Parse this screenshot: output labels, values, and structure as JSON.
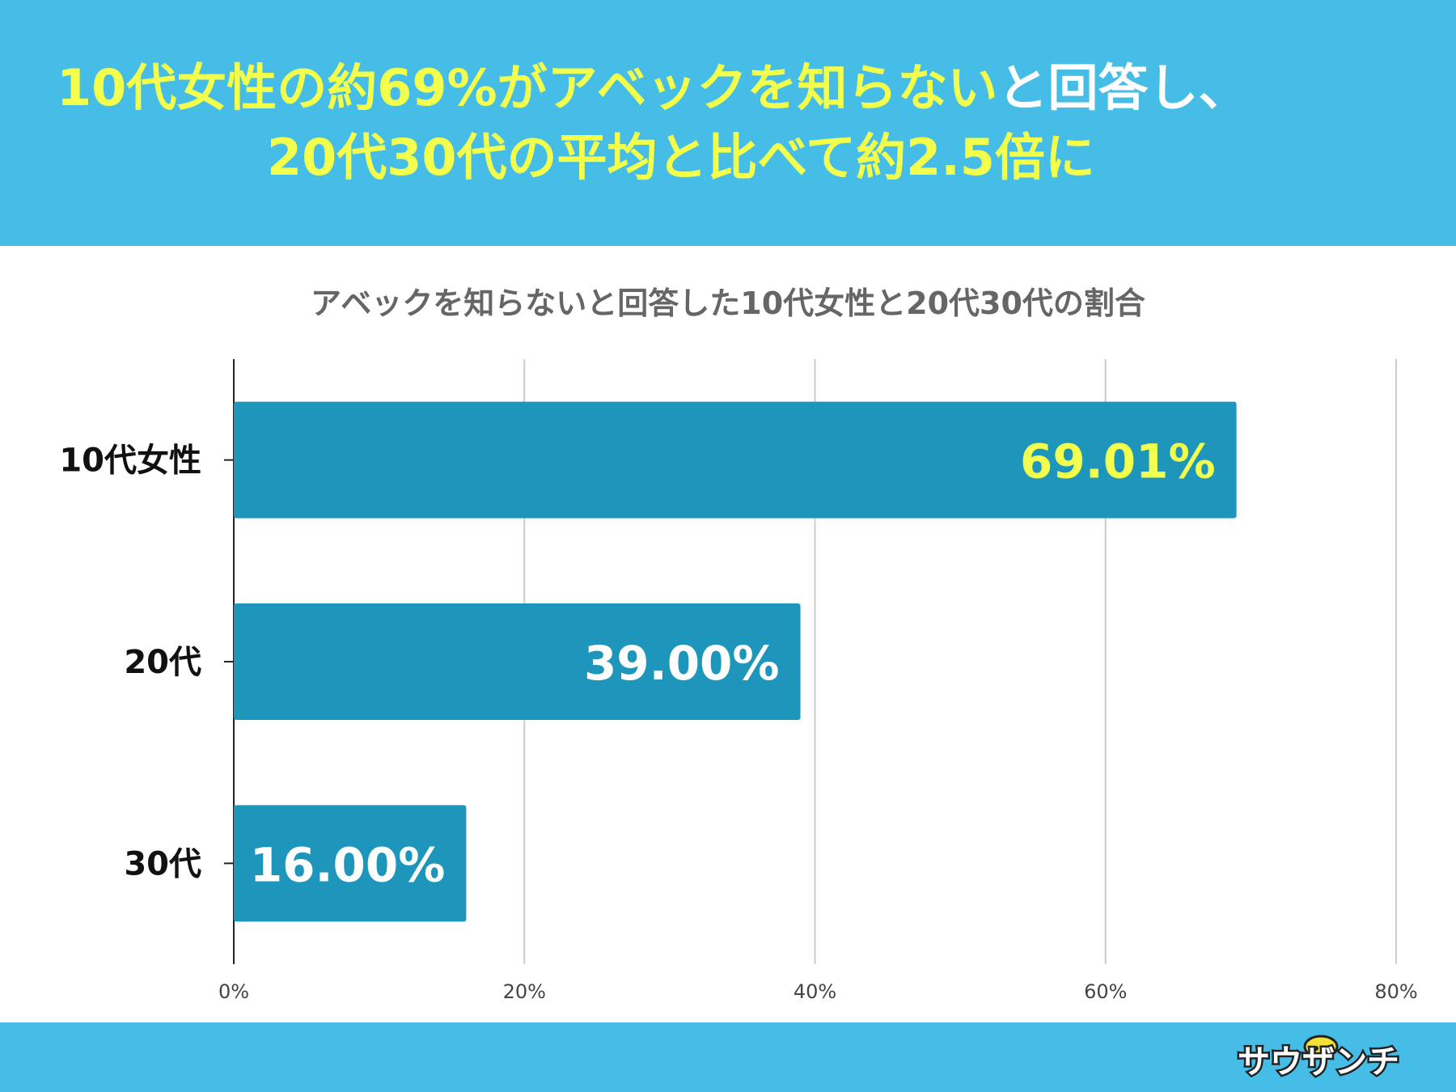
{
  "header": {
    "line1_highlight": "10代女性の約69%がアベックを知らない",
    "line1_rest": "と回答し、",
    "line2": "20代30代の平均と比べて約2.5倍に"
  },
  "logo": {
    "text": "サウザンチ",
    "icon": "helmet-icon"
  },
  "colors": {
    "header_bg": "#45bde6",
    "bar": "#1e96bb",
    "highlight_text": "#f2ff4d",
    "value_label_default": "#ffffff",
    "gridline": "#cccccc",
    "title_text": "#666666"
  },
  "chart_data": {
    "type": "bar",
    "orientation": "horizontal",
    "title": "アベックを知らないと回答した10代女性と20代30代の割合",
    "categories": [
      "10代女性",
      "20代",
      "30代"
    ],
    "values": [
      69.01,
      39.0,
      16.0
    ],
    "value_labels": [
      "69.01%",
      "39.00%",
      "16.00%"
    ],
    "value_label_colors": [
      "#f2ff4d",
      "#ffffff",
      "#ffffff"
    ],
    "xlim": [
      0,
      80
    ],
    "xticks": [
      0,
      20,
      40,
      60,
      80
    ],
    "xtick_labels": [
      "0%",
      "20%",
      "40%",
      "60%",
      "80%"
    ],
    "xlabel": "",
    "ylabel": "",
    "grid": true,
    "legend": "none"
  }
}
